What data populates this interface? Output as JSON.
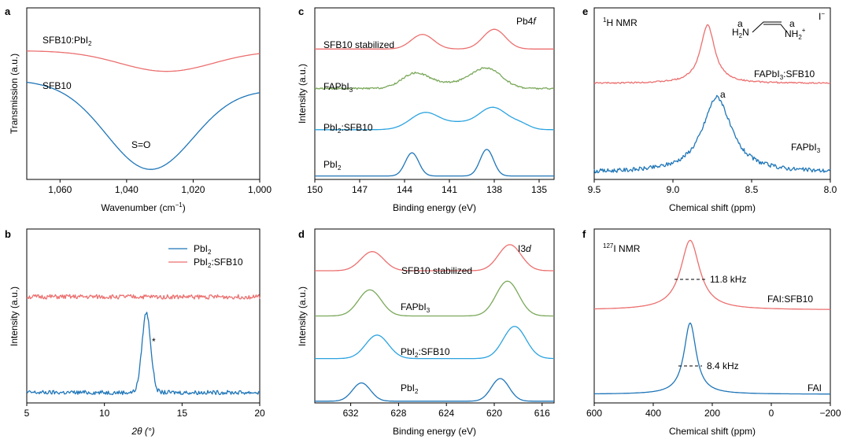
{
  "colors": {
    "red": "#ec6f6f",
    "blue": "#1f76b8",
    "green": "#7aa85a",
    "lightblue": "#2ba3df"
  },
  "chart_data": [
    {
      "id": "a",
      "type": "line",
      "panel_label": "a",
      "title": "",
      "xlabel": "Wavenumber (cm⁻¹)",
      "ylabel": "Transmission (a.u.)",
      "xlim": [
        1070,
        1000
      ],
      "ylim": [
        0,
        10
      ],
      "xticks": [
        1060,
        1040,
        1020,
        1000
      ],
      "xtick_labels": [
        "1,060",
        "1,040",
        "1,020",
        "1,000"
      ],
      "series": [
        {
          "name": "SFB10:PbI₂",
          "color": "red",
          "offset": 7.5,
          "peaks": [
            {
              "center": 1028,
              "height": -1.2,
              "width": 14
            }
          ]
        },
        {
          "name": "SFB10",
          "color": "blue",
          "offset": 5.75,
          "peaks": [
            {
              "center": 1033,
              "height": -4.9,
              "width": 13
            }
          ],
          "slope": -0.5
        }
      ],
      "annotations": [
        "S=O"
      ]
    },
    {
      "id": "b",
      "type": "line",
      "panel_label": "b",
      "xlabel": "2θ (°)",
      "ylabel": "Intensity (a.u.)",
      "xlim": [
        5,
        20
      ],
      "ylim": [
        0,
        10
      ],
      "xticks": [
        5,
        10,
        15,
        20
      ],
      "xtick_labels": [
        "5",
        "10",
        "15",
        "20"
      ],
      "legend": {
        "position": "top-right",
        "entries": [
          "PbI₂",
          "PbI₂:SFB10"
        ]
      },
      "series": [
        {
          "name": "PbI₂",
          "color": "blue",
          "offset": 0.6,
          "noise": 0.12,
          "peaks": [
            {
              "center": 12.7,
              "height": 4.6,
              "width": 0.28
            }
          ]
        },
        {
          "name": "PbI₂:SFB10",
          "color": "red",
          "offset": 6.1,
          "noise": 0.13,
          "peaks": []
        }
      ],
      "annotations": [
        "*"
      ]
    },
    {
      "id": "c",
      "type": "line",
      "panel_label": "c",
      "xlabel": "Binding energy (eV)",
      "ylabel": "Intensity (a.u.)",
      "xlim": [
        150,
        134
      ],
      "ylim": [
        0,
        10
      ],
      "xticks": [
        150,
        147,
        144,
        141,
        138,
        135
      ],
      "xtick_labels": [
        "150",
        "147",
        "144",
        "141",
        "138",
        "135"
      ],
      "corner_label": "Pb4f",
      "series": [
        {
          "name": "SFB10 stabilized",
          "color": "red",
          "offset": 7.6,
          "peaks": [
            {
              "center": 142.8,
              "height": 0.85,
              "width": 0.75
            },
            {
              "center": 138.0,
              "height": 1.15,
              "width": 0.75
            }
          ]
        },
        {
          "name": "FAPbI₃",
          "color": "green",
          "offset": 5.3,
          "noise": 0.05,
          "peaks": [
            {
              "center": 143.3,
              "height": 0.85,
              "width": 0.9
            },
            {
              "center": 141.0,
              "height": 0.3,
              "width": 1.3
            },
            {
              "center": 138.5,
              "height": 1.15,
              "width": 1.0
            }
          ]
        },
        {
          "name": "PbI₂:SFB10",
          "color": "lightblue",
          "offset": 2.9,
          "peaks": [
            {
              "center": 142.6,
              "height": 1.0,
              "width": 1.0
            },
            {
              "center": 140.4,
              "height": 0.3,
              "width": 0.8
            },
            {
              "center": 138.1,
              "height": 1.3,
              "width": 1.0
            },
            {
              "center": 136.2,
              "height": 0.25,
              "width": 0.6
            }
          ]
        },
        {
          "name": "PbI₂",
          "color": "blue",
          "offset": 0.2,
          "peaks": [
            {
              "center": 143.5,
              "height": 1.35,
              "width": 0.45
            },
            {
              "center": 138.5,
              "height": 1.55,
              "width": 0.45
            }
          ]
        }
      ]
    },
    {
      "id": "d",
      "type": "line",
      "panel_label": "d",
      "xlabel": "Binding energy (eV)",
      "ylabel": "Intensity (a.u.)",
      "xlim": [
        635,
        615
      ],
      "ylim": [
        0,
        10
      ],
      "xticks": [
        632,
        628,
        624,
        620,
        616
      ],
      "xtick_labels": [
        "632",
        "628",
        "624",
        "620",
        "616"
      ],
      "corner_label": "I3d",
      "series": [
        {
          "name": "SFB10 stabilized",
          "color": "red",
          "offset": 7.6,
          "peaks": [
            {
              "center": 630.2,
              "height": 1.1,
              "width": 0.95
            },
            {
              "center": 618.7,
              "height": 1.5,
              "width": 0.95
            }
          ]
        },
        {
          "name": "FAPbI₃",
          "color": "green",
          "offset": 5.0,
          "peaks": [
            {
              "center": 630.4,
              "height": 1.5,
              "width": 0.95
            },
            {
              "center": 618.9,
              "height": 2.0,
              "width": 0.95
            }
          ]
        },
        {
          "name": "PbI₂:SFB10",
          "color": "lightblue",
          "offset": 2.55,
          "peaks": [
            {
              "center": 629.8,
              "height": 1.35,
              "width": 0.95
            },
            {
              "center": 618.3,
              "height": 1.85,
              "width": 0.95
            }
          ]
        },
        {
          "name": "PbI₂",
          "color": "blue",
          "offset": 0.1,
          "peaks": [
            {
              "center": 631.1,
              "height": 1.05,
              "width": 0.75
            },
            {
              "center": 619.5,
              "height": 1.3,
              "width": 0.75
            }
          ]
        }
      ]
    },
    {
      "id": "e",
      "type": "line",
      "panel_label": "e",
      "xlabel": "Chemical shift (ppm)",
      "ylabel": "",
      "xlim": [
        9.5,
        8.0
      ],
      "ylim": [
        0,
        10
      ],
      "xticks": [
        9.5,
        9.0,
        8.5,
        8.0
      ],
      "xtick_labels": [
        "9.5",
        "9.0",
        "8.5",
        "8.0"
      ],
      "corner_label": "¹H NMR",
      "series": [
        {
          "name": "FAPbI₃:SFB10",
          "color": "red",
          "offset": 5.6,
          "noise": 0.04,
          "peaks": [
            {
              "center": 8.78,
              "height": 3.4,
              "width": 0.055,
              "shape": "lorentz"
            }
          ]
        },
        {
          "name": "FAPbI₃",
          "color": "blue",
          "offset": 0.4,
          "noise": 0.12,
          "peaks": [
            {
              "center": 8.72,
              "height": 4.4,
              "width": 0.11,
              "shape": "lorentz"
            }
          ]
        }
      ],
      "annotations": [
        "a"
      ],
      "structure": {
        "left": "H₂N",
        "right": "NH₂⁺",
        "site": "a",
        "anion": "I⁻"
      }
    },
    {
      "id": "f",
      "type": "line",
      "panel_label": "f",
      "xlabel": "Chemical shift (ppm)",
      "ylabel": "",
      "xlim": [
        600,
        -200
      ],
      "ylim": [
        0,
        10
      ],
      "xticks": [
        600,
        400,
        200,
        0,
        -200
      ],
      "xtick_labels": [
        "600",
        "400",
        "200",
        "0",
        "−200"
      ],
      "corner_label": "¹²⁷I NMR",
      "series": [
        {
          "name": "FAI:SFB10",
          "color": "red",
          "offset": 5.35,
          "peaks": [
            {
              "center": 275,
              "height": 4.0,
              "width": 39,
              "shape": "lorentz"
            }
          ]
        },
        {
          "name": "FAI",
          "color": "blue",
          "offset": 0.5,
          "peaks": [
            {
              "center": 275,
              "height": 4.1,
              "width": 25,
              "shape": "lorentz"
            }
          ]
        }
      ],
      "annotations": [
        "11.8 kHz",
        "8.4 kHz"
      ]
    }
  ],
  "text": {
    "a": {
      "label": "a",
      "s1": "SFB10:PbI",
      "s1sub": "2",
      "s2": "SFB10",
      "ann": "S=O",
      "xlabel1": "Wavenumber (cm",
      "xlabel_sup": "−1",
      "xlabel2": ")",
      "ylabel": "Transmission (a.u.)"
    },
    "b": {
      "label": "b",
      "leg1": "PbI",
      "leg1sub": "2",
      "leg2": "PbI",
      "leg2sub": "2",
      "leg2rest": ":SFB10",
      "star": "*",
      "xlabel": "2θ (°)",
      "ylabel": "Intensity (a.u.)"
    },
    "c": {
      "label": "c",
      "corner": "Pb4",
      "corner_it": "f",
      "s1": "SFB10 stabilized",
      "s2": "FAPbI",
      "s2sub": "3",
      "s3": "PbI",
      "s3sub": "2",
      "s3rest": ":SFB10",
      "s4": "PbI",
      "s4sub": "2",
      "xlabel": "Binding energy (eV)",
      "ylabel": "Intensity (a.u.)"
    },
    "d": {
      "label": "d",
      "corner": "I3",
      "corner_it": "d",
      "s1": "SFB10 stabilized",
      "s2": "FAPbI",
      "s2sub": "3",
      "s3": "PbI",
      "s3sub": "2",
      "s3rest": ":SFB10",
      "s4": "PbI",
      "s4sub": "2",
      "xlabel": "Binding energy (eV)",
      "ylabel": "Intensity (a.u.)"
    },
    "e": {
      "label": "e",
      "corner_sup": "1",
      "corner": "H NMR",
      "s1": "FAPbI",
      "s1sub": "3",
      "s1rest": ":SFB10",
      "s2": "FAPbI",
      "s2sub": "3",
      "ann": "a",
      "xlabel": "Chemical shift (ppm)",
      "st_a1": "a",
      "st_a2": "a",
      "st_left": "H",
      "st_leftsub": "2",
      "st_leftrest": "N",
      "st_right": "NH",
      "st_rightsub": "2",
      "st_rightsup": "+",
      "st_anion": "I",
      "st_anionsup": "−"
    },
    "f": {
      "label": "f",
      "corner_sup": "127",
      "corner": "I NMR",
      "s1": "FAI:SFB10",
      "s2": "FAI",
      "w1": "11.8 kHz",
      "w2": "8.4 kHz",
      "xlabel": "Chemical shift (ppm)"
    }
  }
}
